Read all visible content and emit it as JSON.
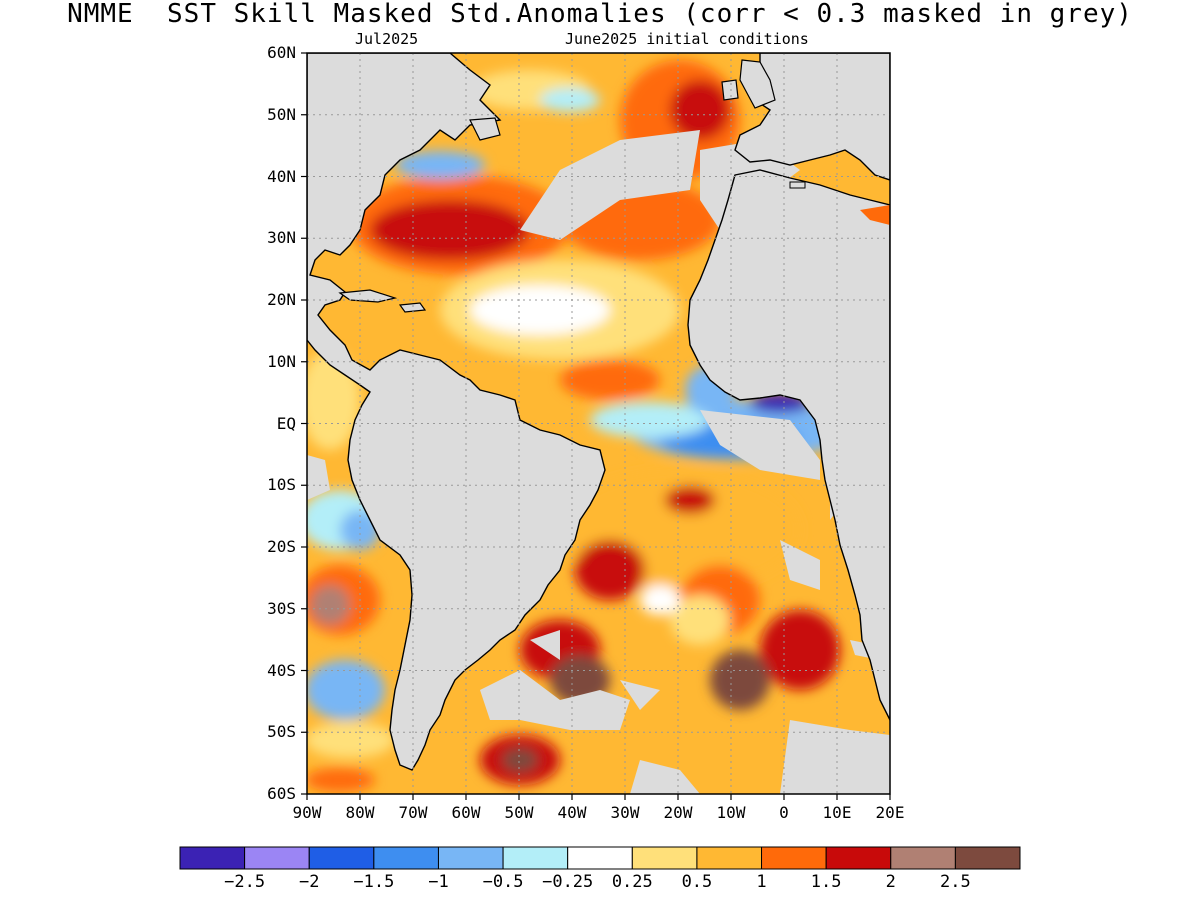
{
  "title": "NMME  SST Skill Masked Std.Anomalies (corr < 0.3 masked in grey)",
  "subtitle_left": "Jul2025",
  "subtitle_right": "June2025 initial conditions",
  "map": {
    "lon_range": [
      -90,
      20
    ],
    "lat_range": [
      -60,
      60
    ],
    "lat_labels": [
      "60N",
      "50N",
      "40N",
      "30N",
      "20N",
      "10N",
      "EQ",
      "10S",
      "20S",
      "30S",
      "40S",
      "50S",
      "60S"
    ],
    "lon_labels": [
      "90W",
      "80W",
      "70W",
      "60W",
      "50W",
      "40W",
      "30W",
      "20W",
      "10W",
      "0",
      "10E",
      "20E"
    ],
    "land_color": "#dcdcdc",
    "mask_color": "#dcdcdc"
  },
  "colorbar": {
    "colors": [
      "#3b22b4",
      "#9b85f4",
      "#1f5ee6",
      "#3e8ef0",
      "#78b6f5",
      "#b3eef8",
      "#ffffff",
      "#ffe07a",
      "#ffb833",
      "#ff6a0a",
      "#c80a0a",
      "#b08073",
      "#7d4a3e"
    ],
    "labels": [
      "−2.5",
      "−2",
      "−1.5",
      "−1",
      "−0.5",
      "−0.25",
      "0.25",
      "0.5",
      "1",
      "1.5",
      "2",
      "2.5"
    ]
  }
}
